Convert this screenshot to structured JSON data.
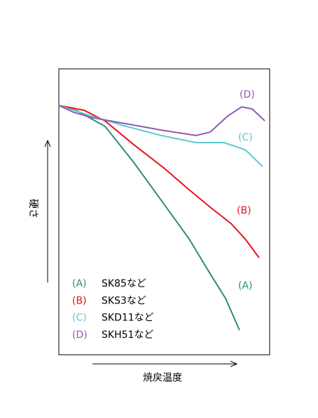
{
  "chart_data": {
    "type": "line",
    "x_label": "焼戻温度",
    "y_label": "硬さ",
    "xlim": [
      0,
      100
    ],
    "ylim": [
      0,
      100
    ],
    "series": [
      {
        "name": "SK85など",
        "label": "(A)",
        "color": "#2e8b7a",
        "x": [
          0,
          8.6,
          21.9,
          35.2,
          48.5,
          61.8,
          71.8,
          79.1,
          85.7
        ],
        "values": [
          87.2,
          85.3,
          79.9,
          67.6,
          54.1,
          40.5,
          28.3,
          19.7,
          8.6
        ]
      },
      {
        "name": "SKS3など",
        "label": "(B)",
        "color": "#e8141c",
        "x": [
          0,
          12,
          21.9,
          35.2,
          50.2,
          61.8,
          71.8,
          81.7,
          88.4,
          95
        ],
        "values": [
          87.2,
          85.5,
          81.8,
          73.7,
          65.1,
          57.7,
          51.6,
          45.9,
          40.5,
          33.9
        ]
      },
      {
        "name": "SKD11など",
        "label": "(C)",
        "color": "#5cc8cf",
        "x": [
          0,
          15.3,
          31.9,
          48.5,
          65.1,
          78.4,
          88.4,
          96.7
        ],
        "values": [
          87.2,
          83.5,
          79.9,
          76.7,
          74.2,
          74.2,
          71.7,
          65.8
        ]
      },
      {
        "name": "SKH51など",
        "label": "(D)",
        "color": "#8e5bb5",
        "x": [
          0,
          7,
          15.3,
          31.9,
          48.5,
          65.1,
          71.8,
          80.1,
          86.7,
          91.7,
          97.7
        ],
        "values": [
          87.2,
          84.8,
          83.0,
          80.8,
          78.6,
          76.7,
          77.9,
          83.5,
          86.7,
          86,
          81.8
        ]
      }
    ]
  }
}
